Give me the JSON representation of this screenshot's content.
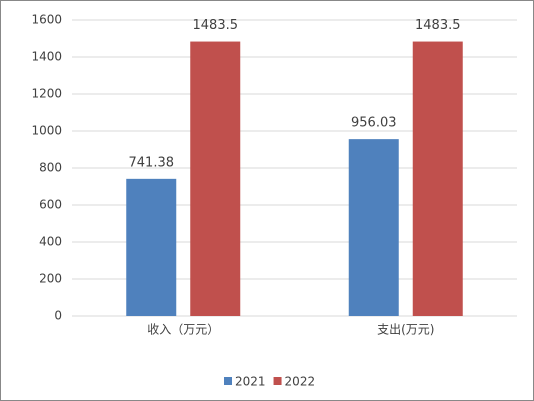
{
  "chart_data": {
    "type": "bar",
    "categories": [
      "收入（万元）",
      "支出(万元)"
    ],
    "series": [
      {
        "name": "2021",
        "color": "#4f81bd",
        "values": [
          741.38,
          956.03
        ]
      },
      {
        "name": "2022",
        "color": "#c0504d",
        "values": [
          1483.5,
          1483.5
        ]
      }
    ],
    "ylim": [
      0,
      1600
    ],
    "yticks": [
      0,
      200,
      400,
      600,
      800,
      1000,
      1200,
      1400,
      1600
    ],
    "grid": true,
    "legend": "bottom"
  }
}
